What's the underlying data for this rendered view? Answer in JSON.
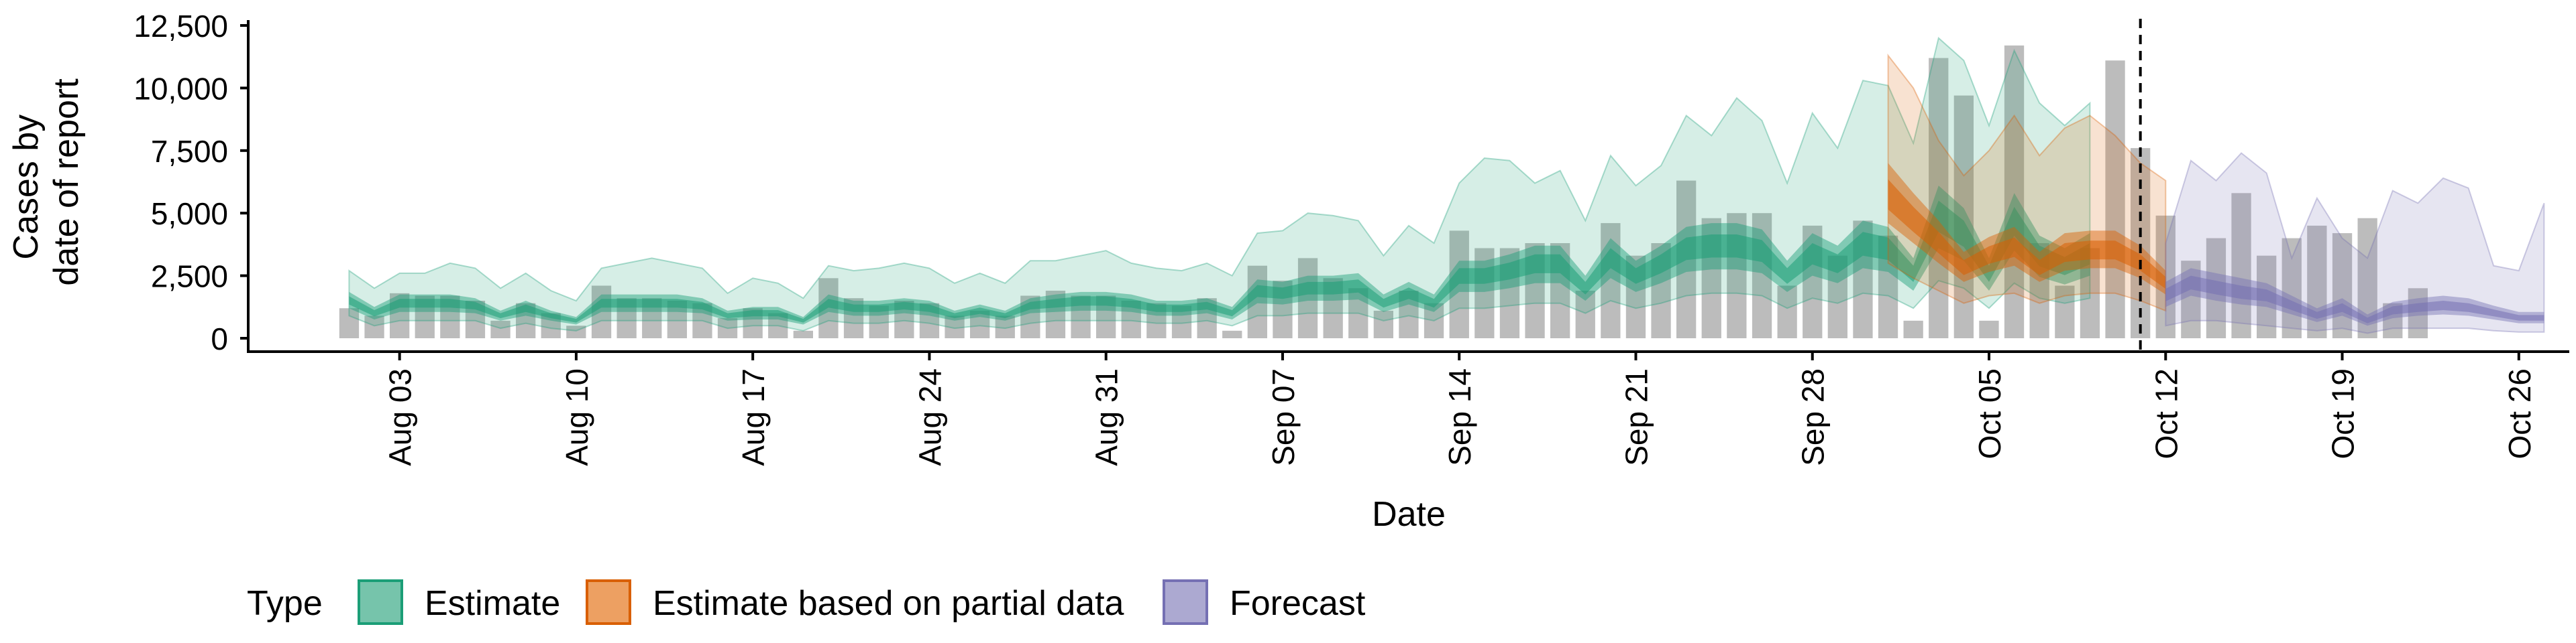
{
  "chart_data": {
    "type": "bar",
    "xlabel": "Date",
    "ylabel_lines": [
      "Cases by",
      "date of report"
    ],
    "ylim": [
      0,
      12500
    ],
    "y_ticks": [
      0,
      2500,
      5000,
      7500,
      10000,
      12500
    ],
    "y_tick_labels": [
      "0",
      "2,500",
      "5,000",
      "7,500",
      "10,000",
      "12,500"
    ],
    "x_range": [
      "2020-07-28",
      "2020-10-28"
    ],
    "x_ticks": [
      "2020-08-03",
      "2020-08-10",
      "2020-08-17",
      "2020-08-24",
      "2020-08-31",
      "2020-09-07",
      "2020-09-14",
      "2020-09-21",
      "2020-09-28",
      "2020-10-05",
      "2020-10-12",
      "2020-10-19",
      "2020-10-26"
    ],
    "x_tick_labels": [
      "Aug 03",
      "Aug 10",
      "Aug 17",
      "Aug 24",
      "Aug 31",
      "Sep 07",
      "Sep 14",
      "Sep 21",
      "Sep 28",
      "Oct 05",
      "Oct 12",
      "Oct 19",
      "Oct 26"
    ],
    "vline_date": "2020-10-11",
    "grid": false,
    "legend": {
      "title": "Type",
      "position": "bottom",
      "items": [
        {
          "label": "Estimate",
          "fill": "#76c4ab",
          "stroke": "#1b9e77"
        },
        {
          "label": "Estimate based on partial data",
          "fill": "#eda062",
          "stroke": "#d95f02"
        },
        {
          "label": "Forecast",
          "fill": "#aca9d1",
          "stroke": "#7570b3"
        }
      ]
    },
    "observed_reports": {
      "start_date": "2020-08-01",
      "values": [
        1200,
        900,
        1800,
        1700,
        1700,
        1500,
        700,
        1400,
        1000,
        500,
        2100,
        1600,
        1600,
        1500,
        1400,
        800,
        1200,
        1000,
        300,
        2400,
        1600,
        1300,
        1500,
        1400,
        900,
        1100,
        900,
        1700,
        1900,
        1700,
        1700,
        1500,
        1400,
        1300,
        1600,
        300,
        2900,
        2300,
        3200,
        2400,
        2000,
        1100,
        1900,
        1400,
        4300,
        3600,
        3600,
        3800,
        3800,
        1900,
        4600,
        3300,
        3800,
        6300,
        4800,
        5000,
        5000,
        2100,
        4500,
        3300,
        4700,
        4100,
        700,
        11200,
        9700,
        700,
        11700,
        3800,
        2100,
        3600,
        11100,
        7600,
        4900,
        3100,
        4000,
        5800,
        3300,
        4000,
        4500,
        4200,
        4800,
        1400,
        2000
      ]
    },
    "series": [
      {
        "name": "Estimate",
        "color": "#1b9e77",
        "start_date": "2020-08-01",
        "median": [
          1500,
          1000,
          1400,
          1400,
          1400,
          1300,
          900,
          1200,
          900,
          700,
          1400,
          1400,
          1400,
          1400,
          1300,
          900,
          1000,
          1000,
          700,
          1400,
          1200,
          1200,
          1300,
          1200,
          900,
          1100,
          900,
          1300,
          1400,
          1500,
          1500,
          1400,
          1200,
          1200,
          1300,
          1000,
          1900,
          1800,
          2000,
          2000,
          2100,
          1400,
          1800,
          1400,
          2500,
          2500,
          2700,
          3000,
          3000,
          2000,
          3200,
          2500,
          3000,
          3600,
          3700,
          3700,
          3500,
          2500,
          3400,
          3000,
          3800,
          3600,
          2600,
          4900,
          4200,
          2600,
          4700,
          3300,
          2900,
          3400
        ],
        "q25": [
          1200,
          750,
          1050,
          1050,
          1050,
          1000,
          700,
          900,
          700,
          550,
          1050,
          1050,
          1050,
          1050,
          1000,
          700,
          750,
          750,
          550,
          1050,
          900,
          900,
          1000,
          900,
          700,
          850,
          700,
          1000,
          1050,
          1100,
          1100,
          1050,
          900,
          900,
          1000,
          750,
          1400,
          1350,
          1500,
          1500,
          1550,
          1050,
          1350,
          1050,
          1850,
          1850,
          2000,
          2200,
          2200,
          1500,
          2400,
          1850,
          2200,
          2650,
          2750,
          2750,
          2600,
          1850,
          2500,
          2200,
          2800,
          2650,
          1900,
          3600,
          3100,
          1900,
          3500,
          2450,
          2150,
          2500
        ],
        "q75": [
          1850,
          1250,
          1750,
          1750,
          1750,
          1600,
          1100,
          1500,
          1100,
          850,
          1750,
          1750,
          1750,
          1750,
          1600,
          1100,
          1250,
          1250,
          850,
          1750,
          1500,
          1500,
          1600,
          1500,
          1100,
          1350,
          1100,
          1600,
          1750,
          1850,
          1850,
          1750,
          1500,
          1500,
          1600,
          1250,
          2350,
          2250,
          2500,
          2500,
          2600,
          1750,
          2250,
          1750,
          3100,
          3100,
          3350,
          3700,
          3700,
          2500,
          4000,
          3100,
          3700,
          4450,
          4600,
          4600,
          4350,
          3100,
          4200,
          3700,
          4700,
          4450,
          3200,
          6100,
          5200,
          3200,
          5800,
          4100,
          3600,
          4200
        ],
        "lower": [
          900,
          500,
          700,
          700,
          700,
          700,
          400,
          600,
          400,
          300,
          700,
          700,
          700,
          700,
          700,
          400,
          500,
          500,
          300,
          700,
          600,
          600,
          700,
          600,
          400,
          500,
          400,
          600,
          700,
          700,
          700,
          700,
          600,
          600,
          700,
          500,
          900,
          900,
          1000,
          1000,
          1000,
          700,
          900,
          700,
          1200,
          1200,
          1300,
          1400,
          1400,
          1000,
          1500,
          1200,
          1400,
          1700,
          1800,
          1800,
          1700,
          1200,
          1600,
          1400,
          1800,
          1700,
          1200,
          2300,
          2000,
          1200,
          2200,
          1600,
          1400,
          1600
        ],
        "upper": [
          2700,
          2000,
          2600,
          2600,
          3000,
          2800,
          2000,
          2600,
          1900,
          1500,
          2800,
          3000,
          3200,
          3000,
          2800,
          1800,
          2400,
          2200,
          1600,
          2900,
          2700,
          2800,
          3000,
          2800,
          2200,
          2600,
          2200,
          3100,
          3100,
          3300,
          3500,
          3000,
          2800,
          2700,
          3000,
          2500,
          4200,
          4300,
          5000,
          4900,
          4700,
          3300,
          4500,
          3800,
          6200,
          7200,
          7100,
          6200,
          6700,
          4700,
          7300,
          6100,
          6900,
          8900,
          8100,
          9600,
          8700,
          6200,
          9000,
          7600,
          10300,
          10100,
          7800,
          12000,
          11100,
          8500,
          11500,
          9400,
          8500,
          9400
        ]
      },
      {
        "name": "Estimate based on partial data",
        "color": "#d95f02",
        "start_date": "2020-10-01",
        "median": [
          5700,
          4700,
          3800,
          2800,
          3300,
          3600,
          2800,
          3400,
          3500,
          3500,
          3000,
          2200
        ],
        "q25": [
          4600,
          3800,
          3000,
          2250,
          2650,
          2900,
          2250,
          2700,
          2800,
          2800,
          2400,
          1750
        ],
        "q75": [
          7000,
          5800,
          4700,
          3450,
          4050,
          4450,
          3450,
          4200,
          4300,
          4300,
          3700,
          2700
        ],
        "lower": [
          3000,
          2400,
          1900,
          1400,
          1700,
          1800,
          1400,
          1700,
          1800,
          1800,
          1500,
          1100
        ],
        "upper": [
          11300,
          10000,
          7900,
          6500,
          7500,
          8900,
          7300,
          8400,
          8900,
          8100,
          7000,
          6300
        ]
      },
      {
        "name": "Forecast",
        "color": "#7570b3",
        "start_date": "2020-10-12",
        "median": [
          1700,
          2200,
          2000,
          1800,
          1700,
          1300,
          900,
          1200,
          700,
          1100,
          1200,
          1300,
          1200,
          1000,
          800,
          800
        ],
        "q25": [
          1250,
          1700,
          1500,
          1350,
          1250,
          950,
          650,
          900,
          500,
          800,
          900,
          950,
          900,
          750,
          600,
          600
        ],
        "q75": [
          2250,
          2800,
          2600,
          2400,
          2200,
          1700,
          1200,
          1600,
          950,
          1450,
          1600,
          1700,
          1600,
          1300,
          1050,
          1050
        ],
        "lower": [
          500,
          700,
          700,
          600,
          500,
          400,
          300,
          400,
          200,
          400,
          400,
          400,
          400,
          300,
          250,
          250
        ],
        "upper": [
          3800,
          7100,
          6300,
          7400,
          6600,
          3200,
          5600,
          4000,
          3200,
          5900,
          5400,
          6400,
          6000,
          2900,
          2700,
          5400
        ]
      }
    ]
  }
}
